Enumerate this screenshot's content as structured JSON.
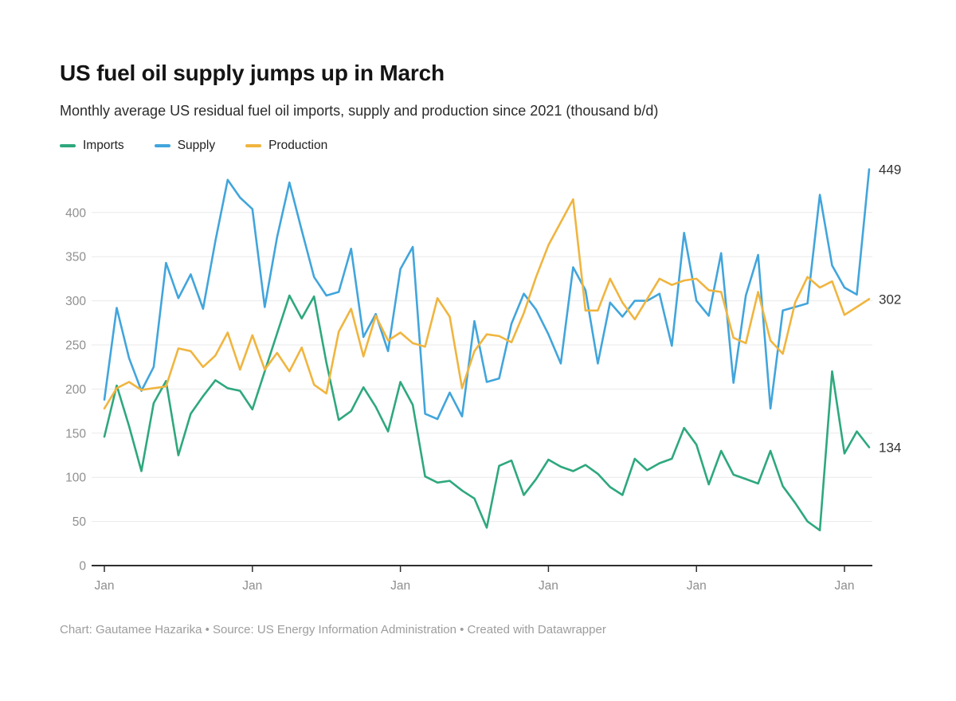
{
  "header": {
    "title": "US fuel oil supply jumps up in March",
    "subtitle": "Monthly average US residual fuel oil imports, supply and production since 2021 (thousand b/d)"
  },
  "legend": [
    {
      "label": "Imports",
      "color": "#2ea87d"
    },
    {
      "label": "Supply",
      "color": "#41a5dc"
    },
    {
      "label": "Production",
      "color": "#f0b53f"
    }
  ],
  "chart_data": {
    "type": "line",
    "title": "US fuel oil supply jumps up in March",
    "subtitle": "Monthly average US residual fuel oil imports, supply and production since 2021 (thousand b/d)",
    "unit": "thousand b/d",
    "x_description": "Monthly points from Jan 2021 to Mar 2026; only January ticks are labeled",
    "x_tick_label": "Jan",
    "jan_indices": [
      0,
      12,
      24,
      36,
      48,
      60
    ],
    "y_ticks": [
      0,
      50,
      100,
      150,
      200,
      250,
      300,
      350,
      400
    ],
    "ylim": [
      0,
      460
    ],
    "grid": "horizontal",
    "legend_position": "top-left",
    "series": [
      {
        "name": "Imports",
        "color": "#2ea87d",
        "end_label": "134",
        "values": [
          146,
          204,
          158,
          107,
          184,
          209,
          125,
          172,
          192,
          210,
          201,
          198,
          177,
          220,
          263,
          306,
          280,
          305,
          230,
          165,
          175,
          202,
          180,
          152,
          208,
          182,
          101,
          94,
          96,
          85,
          76,
          43,
          113,
          119,
          80,
          98,
          120,
          112,
          107,
          114,
          104,
          89,
          80,
          121,
          108,
          116,
          121,
          156,
          137,
          92,
          130,
          103,
          98,
          93,
          130,
          90,
          71,
          50,
          40,
          220,
          127,
          152,
          134
        ]
      },
      {
        "name": "Supply",
        "color": "#41a5dc",
        "end_label": "449",
        "values": [
          188,
          292,
          235,
          198,
          225,
          343,
          303,
          330,
          291,
          368,
          437,
          417,
          404,
          293,
          372,
          434,
          380,
          327,
          306,
          310,
          359,
          259,
          285,
          243,
          336,
          361,
          172,
          166,
          196,
          169,
          277,
          208,
          212,
          274,
          308,
          290,
          262,
          229,
          338,
          312,
          229,
          298,
          282,
          300,
          300,
          308,
          249,
          377,
          300,
          283,
          354,
          207,
          306,
          352,
          178,
          289,
          293,
          297,
          420,
          340,
          315,
          307,
          449
        ]
      },
      {
        "name": "Production",
        "color": "#f0b53f",
        "end_label": "302",
        "values": [
          178,
          201,
          208,
          199,
          201,
          203,
          246,
          243,
          225,
          238,
          264,
          222,
          261,
          222,
          241,
          220,
          247,
          205,
          195,
          265,
          291,
          237,
          283,
          255,
          264,
          252,
          248,
          303,
          282,
          201,
          243,
          262,
          260,
          253,
          286,
          327,
          363,
          389,
          415,
          289,
          289,
          325,
          298,
          279,
          302,
          325,
          318,
          323,
          325,
          312,
          310,
          258,
          252,
          310,
          255,
          240,
          298,
          327,
          315,
          322,
          284,
          293,
          302
        ]
      }
    ]
  },
  "footer": {
    "text": "Chart: Gautamee Hazarika • Source: US Energy Information Administration  • Created with Datawrapper"
  }
}
